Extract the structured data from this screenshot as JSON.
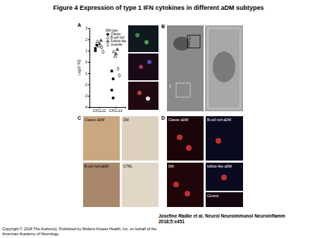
{
  "title": "Figure 4 Expression of type 1 IFN cytokines in different aDM subtypes",
  "chart_data": {
    "type": "scatter",
    "categories": [
      "CXCL12",
      "CXCL13"
    ],
    "y_label": "Log10 RQ",
    "ylim": [
      -4,
      3
    ],
    "yticks": [
      -4,
      -3,
      -2,
      -1,
      0,
      1,
      2,
      3
    ],
    "legend_title": "DM type:",
    "series": [
      {
        "name": "Classic",
        "marker": "square",
        "color": "#000000",
        "x": [
          "CXCL12",
          "CXCL12",
          "CXCL12",
          "CXCL13",
          "CXCL13",
          "CXCL13",
          "CXCL13"
        ],
        "values": [
          1.2,
          1.5,
          1.0,
          -1.5,
          -2.5,
          -3.2,
          -0.8
        ]
      },
      {
        "name": "B-cell rich",
        "marker": "triangle-open",
        "color": "#000000",
        "x": [
          "CXCL12",
          "CXCL12",
          "CXCL13",
          "CXCL13"
        ],
        "values": [
          1.8,
          1.4,
          0.9,
          0.5
        ]
      },
      {
        "name": "Follicle-like",
        "marker": "triangle",
        "color": "#555555",
        "x": [
          "CXCL12",
          "CXCL12",
          "CXCL13",
          "CXCL13"
        ],
        "values": [
          1.6,
          1.9,
          0.7,
          1.1
        ]
      },
      {
        "name": "Juvenile",
        "marker": "diamond-open",
        "color": "#000000",
        "x": [
          "CXCL12",
          "CXCL12",
          "CXCL13",
          "CXCL13"
        ],
        "values": [
          1.3,
          0.9,
          -0.6,
          -1.2
        ]
      }
    ]
  },
  "panels": [
    {
      "label": "A"
    },
    {
      "label": "B",
      "insets": [
        "1",
        "2"
      ]
    },
    {
      "label": "C",
      "captions": [
        "Classic aDM",
        "DM",
        "B-cell rich aDM",
        "CTRL"
      ]
    },
    {
      "label": "D",
      "captions": [
        "Classic aDM",
        "B-cell rich aDM",
        "DM",
        "follicle-like aDM",
        "Control"
      ]
    }
  ],
  "citation": [
    "Josefine Radke et al. Neurol Neuroimmunol Neuroinflamm",
    "2018;5:e451"
  ],
  "copyright": [
    "Copyright © 2018 The Author(s). Published by Wolters Kluwer Health, Inc. on behalf of the",
    "American Academy of Neurology."
  ]
}
